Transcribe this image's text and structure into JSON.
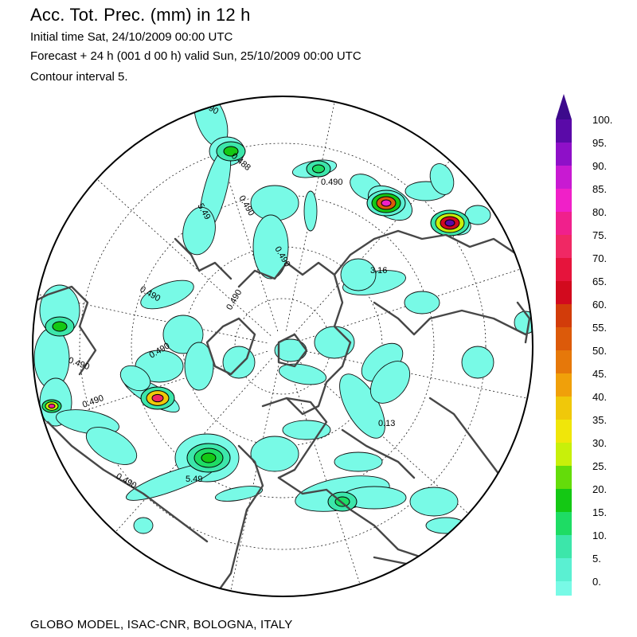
{
  "header": {
    "title": "Acc. Tot. Prec. (mm) in  12 h",
    "initial_time": "Initial time  Sat, 24/10/2009  00:00 UTC",
    "forecast": "Forecast + 24 h  (001 d 00 h)  valid Sun, 25/10/2009 00:00 UTC",
    "contour": "Contour interval       5."
  },
  "map": {
    "contour_labels": [
      "0.490",
      "0.490",
      "0.490",
      "0.490",
      "0.490",
      "0.490",
      "0.490",
      "0.490",
      "0.490",
      "0.490",
      "5.49",
      "5.49",
      "3.16",
      "0.488",
      "0.13"
    ]
  },
  "legend": {
    "levels": [
      "100.",
      "95.",
      "90.",
      "85.",
      "80.",
      "75.",
      "70.",
      "65.",
      "60.",
      "55.",
      "50.",
      "45.",
      "40.",
      "35.",
      "30.",
      "25.",
      "20.",
      "15.",
      "10.",
      "5.",
      "0."
    ],
    "colors": [
      "#5a0aa8",
      "#8e10c8",
      "#c81ad2",
      "#f020c8",
      "#f0208c",
      "#f02864",
      "#e6143c",
      "#d20a1e",
      "#d23c0a",
      "#dc5a0a",
      "#e6780a",
      "#f0a00a",
      "#f0c80a",
      "#f0e60a",
      "#c8f00a",
      "#64dc0a",
      "#14c814",
      "#1edc64",
      "#3ce6aa",
      "#5af0d2",
      "#78fae6"
    ],
    "arrow_color": "#3c0a8c"
  },
  "footer": {
    "credit": "GLOBO MODEL,  ISAC-CNR,  BOLOGNA,  ITALY"
  }
}
